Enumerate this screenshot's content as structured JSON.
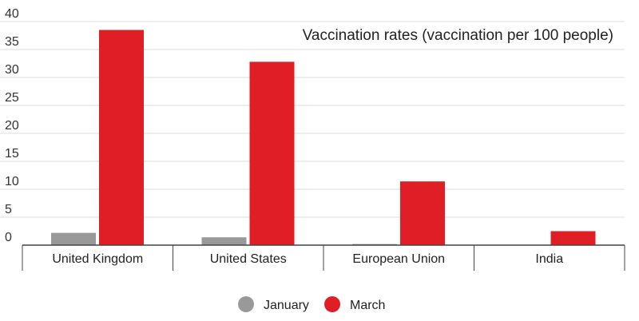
{
  "chart_data": {
    "type": "bar",
    "title": "Vaccination rates (vaccination per 100 people)",
    "categories": [
      "United Kingdom",
      "United States",
      "European Union",
      "India"
    ],
    "series": [
      {
        "name": "January",
        "color": "#999999",
        "values": [
          2.2,
          1.4,
          0.2,
          0.0
        ]
      },
      {
        "name": "March",
        "color": "#e01e26",
        "values": [
          38.5,
          32.8,
          11.4,
          2.5
        ]
      }
    ],
    "yticks": [
      "0",
      "5",
      "10",
      "15",
      "20",
      "25",
      "30",
      "35",
      "40"
    ],
    "ylim": [
      0,
      40
    ],
    "grid": true,
    "legend": "bottom-center"
  }
}
